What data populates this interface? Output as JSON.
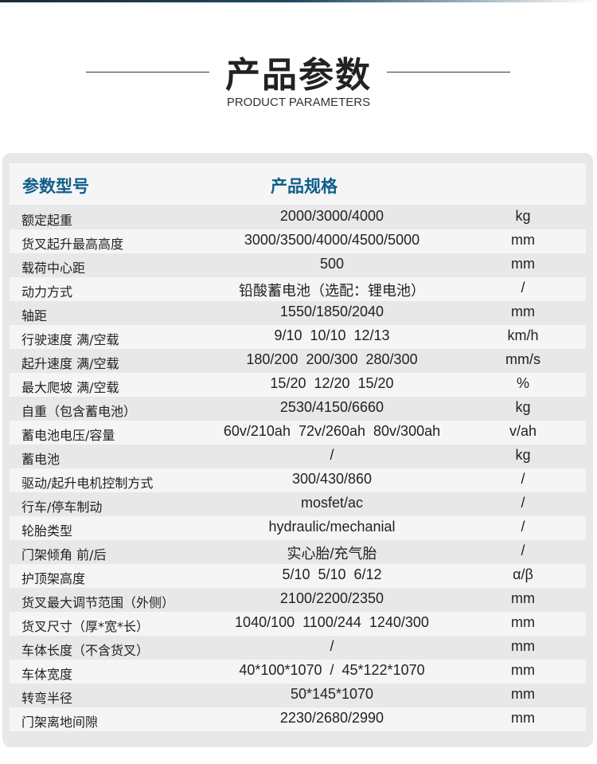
{
  "header": {
    "title": "产品参数",
    "subtitle": "PRODUCT PARAMETERS"
  },
  "table": {
    "col_param": "参数型号",
    "col_spec": "产品规格",
    "rows": [
      {
        "param": "额定起重",
        "spec": "2000/3000/4000",
        "unit": "kg"
      },
      {
        "param": "货叉起升最高高度",
        "spec": "3000/3500/4000/4500/5000",
        "unit": "mm"
      },
      {
        "param": "载荷中心距",
        "spec": "500",
        "unit": "mm"
      },
      {
        "param": "动力方式",
        "spec": "铅酸蓄电池（选配：锂电池）",
        "unit": "/"
      },
      {
        "param": "轴距",
        "spec": "1550/1850/2040",
        "unit": "mm"
      },
      {
        "param": "行驶速度 满/空载",
        "spec": "9/10  10/10  12/13",
        "unit": "km/h"
      },
      {
        "param": "起升速度 满/空载",
        "spec": "180/200  200/300  280/300",
        "unit": "mm/s"
      },
      {
        "param": "最大爬坡 满/空载",
        "spec": "15/20  12/20  15/20",
        "unit": "%"
      },
      {
        "param": "自重（包含蓄电池）",
        "spec": "2530/4150/6660",
        "unit": "kg"
      },
      {
        "param": "蓄电池电压/容量",
        "spec": "60v/210ah  72v/260ah  80v/300ah",
        "unit": "v/ah"
      },
      {
        "param": "蓄电池",
        "spec": "/",
        "unit": "kg"
      },
      {
        "param": "驱动/起升电机控制方式",
        "spec": "300/430/860",
        "unit": "/"
      },
      {
        "param": "行车/停车制动",
        "spec": "mosfet/ac",
        "unit": "/"
      },
      {
        "param": "轮胎类型",
        "spec": "hydraulic/mechanial",
        "unit": "/"
      },
      {
        "param": "门架倾角 前/后",
        "spec": "实心胎/充气胎",
        "unit": "/"
      },
      {
        "param": "护顶架高度",
        "spec": "5/10  5/10  6/12",
        "unit": "α/β"
      },
      {
        "param": "货叉最大调节范围（外侧）",
        "spec": "2100/2200/2350",
        "unit": "mm"
      },
      {
        "param": "货叉尺寸（厚*宽*长）",
        "spec": "1040/100  1100/244  1240/300",
        "unit": "mm"
      },
      {
        "param": "车体长度（不含货叉）",
        "spec": "/",
        "unit": "mm"
      },
      {
        "param": "车体宽度",
        "spec": "40*100*1070  /  45*122*1070",
        "unit": "mm"
      },
      {
        "param": "转弯半径",
        "spec": "50*145*1070",
        "unit": "mm"
      },
      {
        "param": "门架离地间隙",
        "spec": "2230/2680/2990",
        "unit": "mm"
      }
    ]
  }
}
